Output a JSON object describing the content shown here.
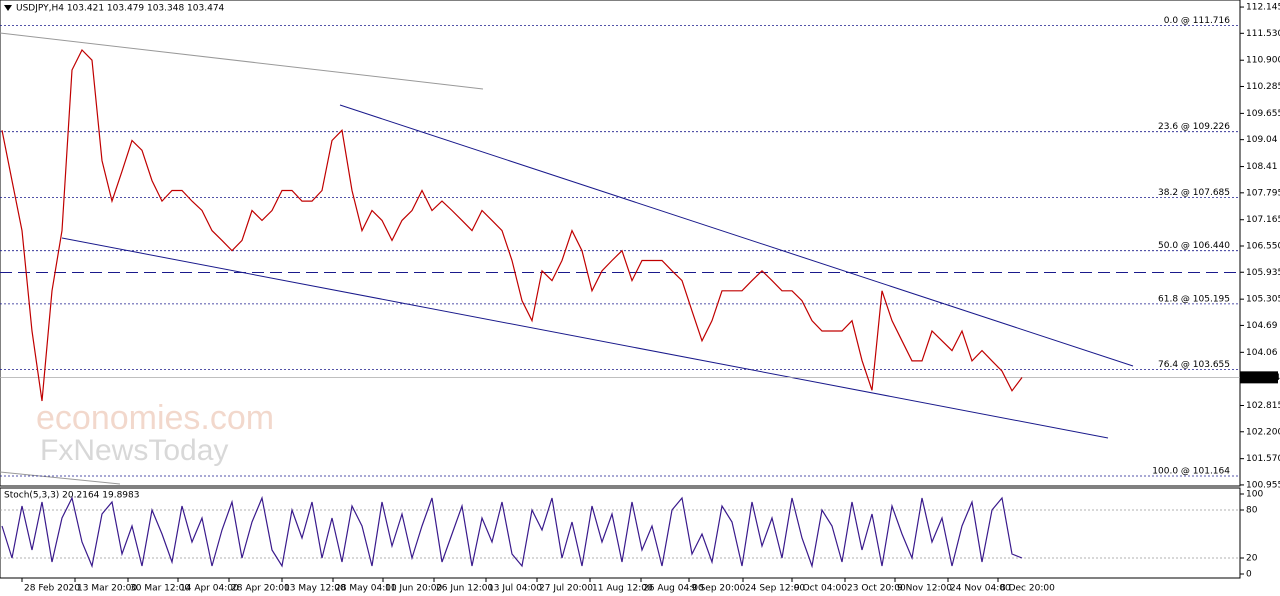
{
  "watermark": {
    "line1": "economies.com",
    "line2": "FxNewsToday"
  },
  "chart_data": [
    {
      "type": "line",
      "title": "USDJPY,H4  103.421 103.479 103.348 103.474",
      "color": "#c00000",
      "values": [
        109.26,
        108.08,
        106.91,
        104.56,
        102.92,
        105.5,
        106.91,
        110.67,
        111.14,
        110.9,
        108.55,
        107.6,
        108.3,
        109.02,
        108.79,
        108.08,
        107.6,
        107.85,
        107.85,
        107.6,
        107.38,
        106.91,
        106.68,
        106.44,
        106.68,
        107.38,
        107.15,
        107.38,
        107.85,
        107.85,
        107.6,
        107.6,
        107.85,
        109.02,
        109.26,
        107.85,
        106.91,
        107.38,
        107.15,
        106.68,
        107.15,
        107.38,
        107.85,
        107.38,
        107.6,
        107.38,
        107.15,
        106.91,
        107.38,
        107.15,
        106.91,
        106.21,
        105.27,
        104.8,
        105.97,
        105.74,
        106.21,
        106.91,
        106.44,
        105.5,
        105.97,
        106.21,
        106.44,
        105.74,
        106.21,
        106.21,
        106.21,
        105.97,
        105.74,
        105.03,
        104.33,
        104.8,
        105.5,
        105.5,
        105.5,
        105.74,
        105.97,
        105.74,
        105.5,
        105.5,
        105.27,
        104.8,
        104.56,
        104.56,
        104.56,
        104.8,
        103.87,
        103.17,
        105.5,
        104.8,
        104.33,
        103.86,
        103.86,
        104.56,
        104.33,
        104.1,
        104.56,
        103.86,
        104.1,
        103.86,
        103.62,
        103.16,
        103.47
      ],
      "xlim": [
        -0.2,
        123.8
      ],
      "ylim": [
        100.93,
        112.31
      ],
      "yticks": [
        112.145,
        {
          "value": 111.53,
          "label": "111.530"
        },
        {
          "value": 110.9,
          "label": "110.900"
        },
        110.285,
        109.655,
        109.04,
        108.41,
        107.795,
        107.165,
        {
          "value": 106.55,
          "label": "106.550"
        },
        105.935,
        105.305,
        104.69,
        104.06,
        102.815,
        {
          "value": 102.2,
          "label": "102.200"
        },
        {
          "value": 101.57,
          "label": "101.570"
        },
        100.955
      ],
      "levels": [
        {
          "value": 111.716,
          "label": "0.0 @ 111.716"
        },
        {
          "value": 109.226,
          "label": "23.6 @ 109.226"
        },
        {
          "value": 107.685,
          "label": "38.2 @ 107.685"
        },
        {
          "value": 106.44,
          "label": "50.0 @ 106.440"
        },
        {
          "value": 105.195,
          "label": "61.8 @ 105.195"
        },
        {
          "value": 103.655,
          "label": "76.4 @ 103.655"
        },
        {
          "value": 101.164,
          "label": "100.0 @ 101.164"
        }
      ],
      "dashed_level": 105.93,
      "last_price": 103.474
    },
    {
      "type": "line",
      "title": "Stoch(5,3,3) 20.2164 19.8983",
      "color": "#3a1a8c",
      "values": [
        60,
        20,
        85,
        30,
        90,
        15,
        70,
        95,
        40,
        10,
        75,
        90,
        25,
        60,
        10,
        80,
        50,
        15,
        85,
        40,
        70,
        10,
        55,
        90,
        20,
        65,
        95,
        30,
        10,
        80,
        45,
        90,
        20,
        70,
        15,
        85,
        60,
        10,
        90,
        35,
        75,
        20,
        60,
        95,
        15,
        50,
        85,
        10,
        70,
        40,
        90,
        25,
        10,
        80,
        55,
        95,
        20,
        65,
        10,
        85,
        40,
        75,
        15,
        90,
        30,
        60,
        10,
        80,
        95,
        25,
        50,
        15,
        85,
        65,
        10,
        90,
        35,
        70,
        20,
        95,
        45,
        10,
        80,
        60,
        15,
        90,
        30,
        75,
        10,
        85,
        50,
        20,
        95,
        40,
        70,
        10,
        60,
        90,
        15,
        80,
        95,
        25,
        20
      ],
      "xlim": [
        -0.2,
        123.8
      ],
      "ylim": [
        -5,
        107.5
      ],
      "yticks": [
        0,
        20,
        80,
        100
      ],
      "levels": [
        20,
        80
      ],
      "xticks": [
        {
          "value": 2,
          "label": "28 Feb 2020"
        },
        {
          "value": 7.3,
          "label": "13 Mar 20:00"
        },
        {
          "value": 12.6,
          "label": "30 Mar 12:00"
        },
        {
          "value": 17.6,
          "label": "14 Apr 04:00"
        },
        {
          "value": 22.7,
          "label": "28 Apr 20:00"
        },
        {
          "value": 28,
          "label": "13 May 12:00"
        },
        {
          "value": 33.1,
          "label": "28 May 04:00"
        },
        {
          "value": 38.1,
          "label": "11 Jun 20:00"
        },
        {
          "value": 43.2,
          "label": "26 Jun 12:00"
        },
        {
          "value": 48.4,
          "label": "13 Jul 04:00"
        },
        {
          "value": 53.5,
          "label": "27 Jul 20:00"
        },
        {
          "value": 58.8,
          "label": "11 Aug 12:00"
        },
        {
          "value": 63.9,
          "label": "26 Aug 04:00"
        },
        {
          "value": 68.7,
          "label": "9 Sep 20:00"
        },
        {
          "value": 74.1,
          "label": "24 Sep 12:00"
        },
        {
          "value": 79,
          "label": "9 Oct 04:00"
        },
        {
          "value": 84.3,
          "label": "23 Oct 20:00"
        },
        {
          "value": 89.3,
          "label": "9 Nov 12:00"
        },
        {
          "value": 94.6,
          "label": "24 Nov 04:00"
        },
        {
          "value": 99.6,
          "label": "8 Dec 20:00"
        }
      ]
    }
  ]
}
